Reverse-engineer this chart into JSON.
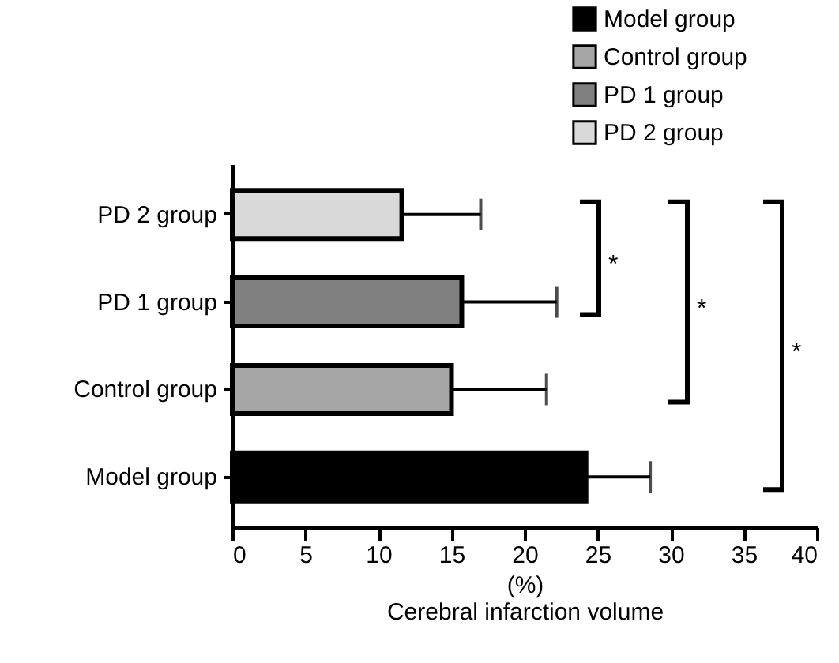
{
  "chart_data": {
    "type": "bar",
    "orientation": "horizontal",
    "categories": [
      "PD 2 group",
      "PD 1 group",
      "Control group",
      "Model group"
    ],
    "series": [
      {
        "name": "Model group",
        "color": "#000000",
        "values": [
          null,
          null,
          null,
          24.2
        ],
        "errors": [
          null,
          null,
          null,
          4.4
        ]
      },
      {
        "name": "Control group",
        "color": "#a6a6a6",
        "values": [
          null,
          null,
          15.0,
          null
        ],
        "errors": [
          null,
          null,
          6.5,
          null
        ]
      },
      {
        "name": "PD 1 group",
        "color": "#808080",
        "values": [
          null,
          15.7,
          null,
          null
        ],
        "errors": [
          null,
          6.5,
          null,
          null
        ]
      },
      {
        "name": "PD 2 group",
        "color": "#d9d9d9",
        "values": [
          11.6,
          null,
          null,
          null
        ],
        "errors": [
          5.4,
          null,
          null,
          null
        ]
      }
    ],
    "xlabel": "(%)\nCerebral infarction volume",
    "xlim": [
      0,
      40
    ],
    "xticks": [
      0,
      5,
      10,
      15,
      20,
      25,
      30,
      35,
      40
    ],
    "legend": "top right",
    "grid": false,
    "annotations": [
      "*",
      "*",
      "*"
    ]
  }
}
